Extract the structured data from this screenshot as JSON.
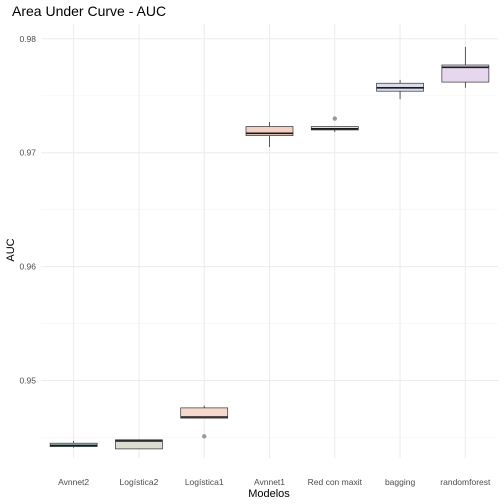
{
  "chart_data": {
    "type": "boxplot",
    "title": "Area Under Curve - AUC",
    "xlabel": "Modelos",
    "ylabel": "AUC",
    "ylim": [
      0.9432,
      0.9813
    ],
    "yticks": [
      0.95,
      0.96,
      0.97,
      0.98
    ],
    "ytick_labels": [
      "0.95",
      "0.96",
      "0.97",
      "0.98"
    ],
    "grid": true,
    "legend": "none",
    "categories": [
      "Avnnet2",
      "Logística2",
      "Logística1",
      "Avnnet1",
      "Red con maxit",
      "bagging",
      "randomforest"
    ],
    "boxes": [
      {
        "category": "Avnnet2",
        "whisker_low": 0.9441,
        "q1": 0.9442,
        "median": 0.9443,
        "q3": 0.9445,
        "whisker_high": 0.9447,
        "outliers": [],
        "color": "#b3e0d9"
      },
      {
        "category": "Logística2",
        "whisker_low": 0.944,
        "q1": 0.944,
        "median": 0.9447,
        "q3": 0.9448,
        "whisker_high": 0.9448,
        "outliers": [],
        "color": "#dcdcd0"
      },
      {
        "category": "Logística1",
        "whisker_low": 0.9467,
        "q1": 0.9467,
        "median": 0.9468,
        "q3": 0.9476,
        "whisker_high": 0.9478,
        "outliers": [
          0.9451
        ],
        "color": "#f6d8cc"
      },
      {
        "category": "Avnnet1",
        "whisker_low": 0.9705,
        "q1": 0.9715,
        "median": 0.9717,
        "q3": 0.9723,
        "whisker_high": 0.9727,
        "outliers": [],
        "color": "#f3d0c3"
      },
      {
        "category": "Red con maxit",
        "whisker_low": 0.9718,
        "q1": 0.972,
        "median": 0.9721,
        "q3": 0.9723,
        "whisker_high": 0.9723,
        "outliers": [
          0.973
        ],
        "color": "#d2e4ea"
      },
      {
        "category": "bagging",
        "whisker_low": 0.9747,
        "q1": 0.9754,
        "median": 0.9757,
        "q3": 0.9761,
        "whisker_high": 0.9764,
        "outliers": [],
        "color": "#d9dced"
      },
      {
        "category": "randomforest",
        "whisker_low": 0.9757,
        "q1": 0.9762,
        "median": 0.9775,
        "q3": 0.9777,
        "whisker_high": 0.9793,
        "outliers": [],
        "color": "#e6d6ee"
      }
    ]
  }
}
